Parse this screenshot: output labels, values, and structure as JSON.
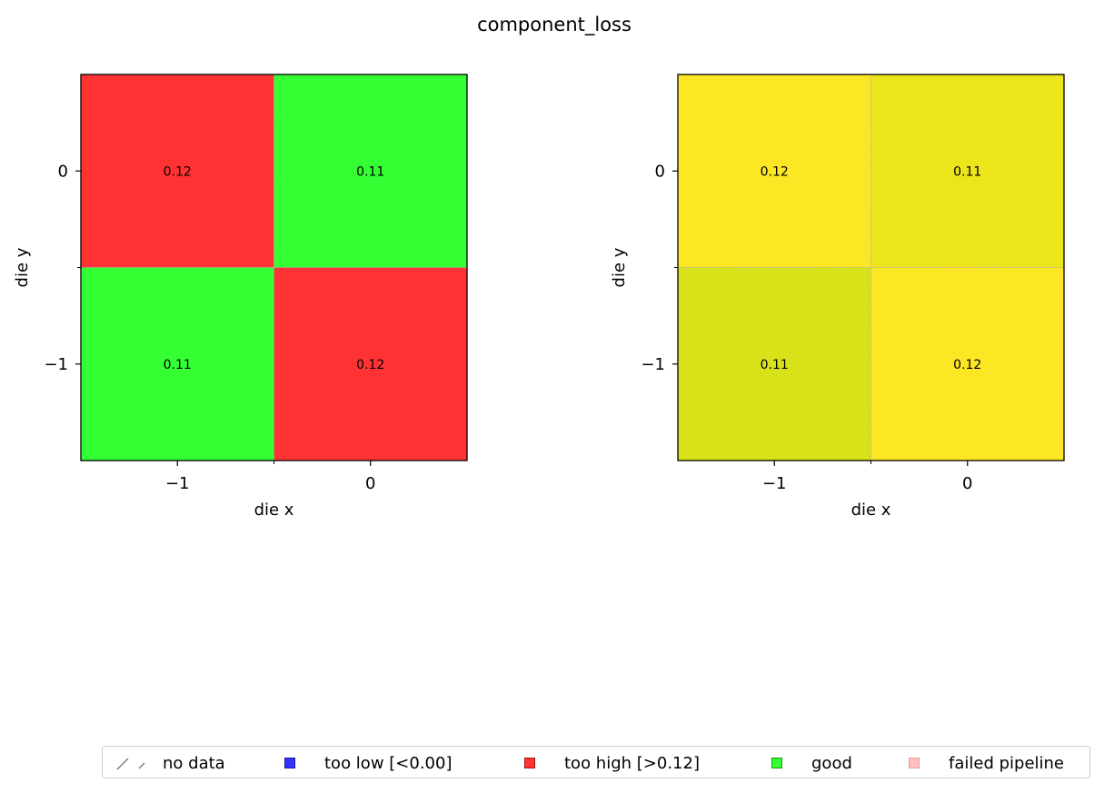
{
  "figure": {
    "title": "component_loss"
  },
  "chart_data": [
    {
      "type": "heatmap",
      "title": "",
      "xlabel": "die x",
      "ylabel": "die y",
      "x": [
        -1,
        0
      ],
      "y": [
        0,
        -1
      ],
      "x_tick_labels": [
        "−1",
        "0"
      ],
      "y_tick_labels": [
        "0",
        "−1"
      ],
      "xlim": [
        -1.5,
        0.5
      ],
      "ylim": [
        -1.5,
        0.5
      ],
      "cells": [
        {
          "x": -1,
          "y": 0,
          "value": 0.12,
          "label": "0.12",
          "color": "#ff3333"
        },
        {
          "x": 0,
          "y": 0,
          "value": 0.11,
          "label": "0.11",
          "color": "#33ff33"
        },
        {
          "x": -1,
          "y": -1,
          "value": 0.11,
          "label": "0.11",
          "color": "#33ff33"
        },
        {
          "x": 0,
          "y": -1,
          "value": 0.12,
          "label": "0.12",
          "color": "#ff3333"
        }
      ]
    },
    {
      "type": "heatmap",
      "title": "",
      "xlabel": "die x",
      "ylabel": "die y",
      "x": [
        -1,
        0
      ],
      "y": [
        0,
        -1
      ],
      "x_tick_labels": [
        "−1",
        "0"
      ],
      "y_tick_labels": [
        "0",
        "−1"
      ],
      "xlim": [
        -1.5,
        0.5
      ],
      "ylim": [
        -1.5,
        0.5
      ],
      "cells": [
        {
          "x": -1,
          "y": 0,
          "value": 0.12,
          "label": "0.12",
          "color": "#fde725"
        },
        {
          "x": 0,
          "y": 0,
          "value": 0.11,
          "label": "0.11",
          "color": "#ece51b"
        },
        {
          "x": -1,
          "y": -1,
          "value": 0.11,
          "label": "0.11",
          "color": "#d8e219"
        },
        {
          "x": 0,
          "y": -1,
          "value": 0.12,
          "label": "0.12",
          "color": "#fde725"
        }
      ]
    }
  ],
  "legend": {
    "placement": "bottom",
    "items": [
      {
        "label": "no data",
        "symbol": "hatch",
        "color": "#808080"
      },
      {
        "label": "too low [<0.00]",
        "symbol": "square",
        "color": "#3333ff"
      },
      {
        "label": "too high [>0.12]",
        "symbol": "square",
        "color": "#ff3333"
      },
      {
        "label": "good",
        "symbol": "square",
        "color": "#33ff33"
      },
      {
        "label": "failed pipeline",
        "symbol": "square",
        "color": "#ffc0c0"
      }
    ]
  }
}
